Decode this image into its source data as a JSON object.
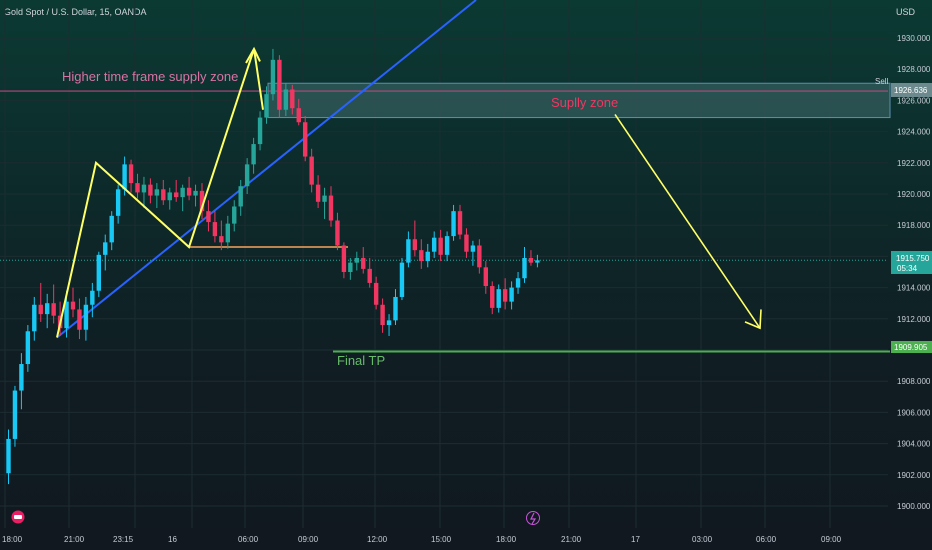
{
  "header": {
    "symbol_label": "Gold Spot / U.S. Dollar, 15, OANDA",
    "currency": "USD"
  },
  "price_axis": {
    "ticks": [
      "1930.000",
      "1928.000",
      "1926.000",
      "1924.000",
      "1922.000",
      "1920.000",
      "1918.000",
      "1916.000",
      "1914.000",
      "1912.000",
      "1910.000",
      "1908.000",
      "1906.000",
      "1904.000",
      "1902.000",
      "1900.000"
    ],
    "current_price": "1915.750",
    "countdown": "05:34",
    "sell_label": "Sell",
    "sell_price": "1926.636",
    "tp_price": "1909.905"
  },
  "time_axis": {
    "labels": [
      "18:00",
      "21:00",
      "23:15",
      "16",
      "06:00",
      "09:00",
      "12:00",
      "15:00",
      "18:00",
      "21:00",
      "17",
      "03:00",
      "06:00",
      "09:00"
    ]
  },
  "annotations": {
    "htf_zone_label": "Higher time frame supply zone",
    "supply_zone_label": "Suplly zone",
    "final_tp_label": "Final TP"
  },
  "colors": {
    "up": "#26a69a",
    "up_bright": "#19c9f5",
    "down": "#f23662",
    "trend_line": "#2962ff",
    "yellow": "#ffff66",
    "tp_line": "#4caf50",
    "htf_line": "#b4487c",
    "zone_fill": "#3f6b6d"
  },
  "chart_data": {
    "type": "candlestick",
    "title": "Gold Spot / U.S. Dollar, 15, OANDA",
    "ylabel": "USD",
    "ylim": [
      1899,
      1931.5
    ],
    "ohlc": [
      [
        1902.1,
        1904.9,
        1901.4,
        1904.3
      ],
      [
        1904.3,
        1907.7,
        1903.8,
        1907.4
      ],
      [
        1907.4,
        1909.8,
        1906.2,
        1909.1
      ],
      [
        1909.1,
        1911.6,
        1908.6,
        1911.2
      ],
      [
        1911.2,
        1913.4,
        1910.6,
        1912.9
      ],
      [
        1912.9,
        1914.3,
        1911.8,
        1912.3
      ],
      [
        1912.3,
        1913.6,
        1911.4,
        1913.0
      ],
      [
        1913.0,
        1914.2,
        1911.7,
        1912.2
      ],
      [
        1912.2,
        1913.1,
        1910.9,
        1911.4
      ],
      [
        1911.4,
        1913.8,
        1910.8,
        1913.1
      ],
      [
        1913.1,
        1914.0,
        1912.1,
        1912.6
      ],
      [
        1912.6,
        1913.3,
        1910.7,
        1911.3
      ],
      [
        1911.3,
        1913.4,
        1910.6,
        1912.9
      ],
      [
        1912.9,
        1914.3,
        1912.1,
        1913.8
      ],
      [
        1913.8,
        1916.3,
        1913.4,
        1916.1
      ],
      [
        1916.1,
        1917.4,
        1915.1,
        1916.9
      ],
      [
        1916.9,
        1918.9,
        1916.4,
        1918.6
      ],
      [
        1918.6,
        1920.6,
        1918.1,
        1920.3
      ],
      [
        1920.3,
        1922.4,
        1919.9,
        1921.9
      ],
      [
        1921.9,
        1922.2,
        1920.1,
        1920.7
      ],
      [
        1920.7,
        1921.3,
        1919.7,
        1920.1
      ],
      [
        1920.1,
        1921.1,
        1919.1,
        1920.6
      ],
      [
        1920.6,
        1921.0,
        1919.4,
        1919.9
      ],
      [
        1919.9,
        1920.7,
        1919.1,
        1920.3
      ],
      [
        1920.3,
        1920.9,
        1919.3,
        1919.6
      ],
      [
        1919.6,
        1920.4,
        1919.0,
        1920.1
      ],
      [
        1920.1,
        1920.9,
        1919.5,
        1919.8
      ],
      [
        1919.8,
        1920.6,
        1918.9,
        1920.4
      ],
      [
        1920.4,
        1921.1,
        1919.6,
        1919.9
      ],
      [
        1919.9,
        1920.6,
        1919.2,
        1920.2
      ],
      [
        1920.2,
        1920.7,
        1918.4,
        1918.9
      ],
      [
        1918.9,
        1919.6,
        1917.6,
        1918.2
      ],
      [
        1918.2,
        1918.9,
        1916.9,
        1917.3
      ],
      [
        1917.3,
        1918.3,
        1916.4,
        1916.9
      ],
      [
        1916.9,
        1918.6,
        1916.5,
        1918.1
      ],
      [
        1918.1,
        1919.6,
        1917.6,
        1919.2
      ],
      [
        1919.2,
        1920.9,
        1918.6,
        1920.5
      ],
      [
        1920.5,
        1922.3,
        1920.0,
        1921.9
      ],
      [
        1921.9,
        1923.6,
        1921.3,
        1923.2
      ],
      [
        1923.2,
        1925.3,
        1922.8,
        1924.9
      ],
      [
        1924.9,
        1926.9,
        1924.5,
        1926.4
      ],
      [
        1926.4,
        1929.3,
        1926.0,
        1928.6
      ],
      [
        1928.6,
        1928.9,
        1924.9,
        1925.4
      ],
      [
        1925.4,
        1927.1,
        1925.0,
        1926.7
      ],
      [
        1926.7,
        1927.0,
        1925.1,
        1925.5
      ],
      [
        1925.5,
        1926.1,
        1924.4,
        1924.6
      ],
      [
        1924.6,
        1925.0,
        1922.1,
        1922.4
      ],
      [
        1922.4,
        1922.9,
        1920.1,
        1920.6
      ],
      [
        1920.6,
        1921.2,
        1919.1,
        1919.5
      ],
      [
        1919.5,
        1920.4,
        1918.4,
        1919.9
      ],
      [
        1919.9,
        1920.5,
        1917.9,
        1918.3
      ],
      [
        1918.3,
        1918.8,
        1916.4,
        1916.7
      ],
      [
        1916.7,
        1916.9,
        1914.6,
        1915.0
      ],
      [
        1915.0,
        1915.9,
        1914.5,
        1915.6
      ],
      [
        1915.6,
        1916.3,
        1915.1,
        1915.9
      ],
      [
        1915.9,
        1916.6,
        1914.9,
        1915.2
      ],
      [
        1915.2,
        1915.9,
        1914.0,
        1914.3
      ],
      [
        1914.3,
        1914.7,
        1912.6,
        1912.9
      ],
      [
        1912.9,
        1913.3,
        1911.1,
        1911.6
      ],
      [
        1911.6,
        1912.3,
        1910.9,
        1911.9
      ],
      [
        1911.9,
        1913.9,
        1911.6,
        1913.4
      ],
      [
        1913.4,
        1915.9,
        1913.2,
        1915.6
      ],
      [
        1915.6,
        1917.6,
        1915.3,
        1917.1
      ],
      [
        1917.1,
        1918.3,
        1916.0,
        1916.4
      ],
      [
        1916.4,
        1917.1,
        1915.2,
        1915.7
      ],
      [
        1915.7,
        1916.8,
        1915.3,
        1916.3
      ],
      [
        1916.3,
        1917.6,
        1915.9,
        1917.2
      ],
      [
        1917.2,
        1917.7,
        1915.7,
        1916.1
      ],
      [
        1916.1,
        1917.6,
        1915.7,
        1917.3
      ],
      [
        1917.3,
        1919.3,
        1917.0,
        1918.9
      ],
      [
        1918.9,
        1919.3,
        1917.1,
        1917.4
      ],
      [
        1917.4,
        1917.8,
        1915.9,
        1916.3
      ],
      [
        1916.3,
        1917.0,
        1915.4,
        1916.7
      ],
      [
        1916.7,
        1917.1,
        1914.9,
        1915.3
      ],
      [
        1915.3,
        1915.7,
        1913.6,
        1914.1
      ],
      [
        1914.1,
        1914.4,
        1912.3,
        1912.7
      ],
      [
        1912.7,
        1914.2,
        1912.4,
        1913.9
      ],
      [
        1913.9,
        1914.6,
        1912.6,
        1913.1
      ],
      [
        1913.1,
        1914.4,
        1912.6,
        1914.0
      ],
      [
        1914.0,
        1915.0,
        1913.6,
        1914.6
      ],
      [
        1914.6,
        1916.6,
        1914.3,
        1915.9
      ],
      [
        1915.9,
        1916.4,
        1915.4,
        1915.6
      ],
      [
        1915.6,
        1916.1,
        1915.3,
        1915.75
      ]
    ],
    "x_start_candle_x": 8.5,
    "candle_spacing_units": 1,
    "levels": {
      "sell": 1926.636,
      "final_tp": 1909.905,
      "last": 1915.75
    },
    "grid": true,
    "legend": "none"
  }
}
